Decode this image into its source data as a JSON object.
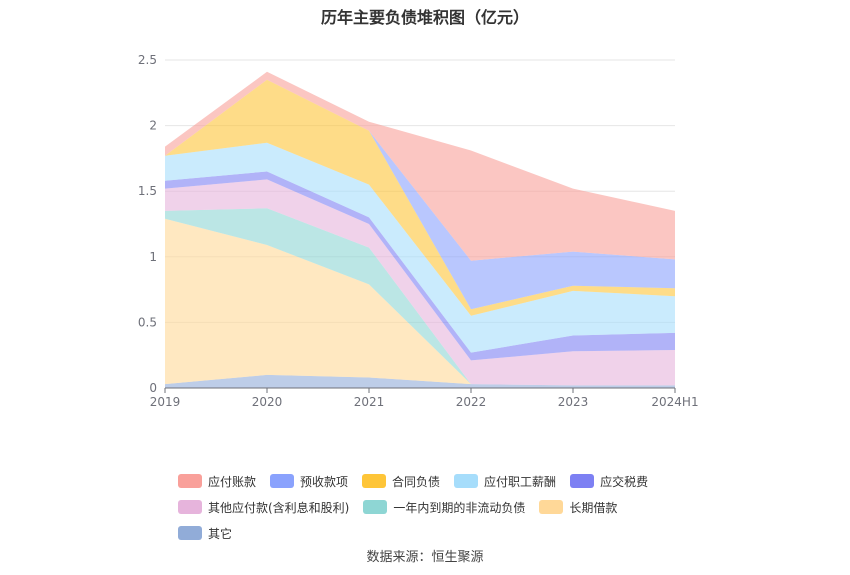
{
  "chart_data": {
    "type": "area",
    "stacked": true,
    "title": "历年主要负债堆积图（亿元）",
    "categories": [
      "2019",
      "2020",
      "2021",
      "2022",
      "2023",
      "2024H1"
    ],
    "y_ticks": [
      "0",
      "0.5",
      "1",
      "1.5",
      "2",
      "2.5"
    ],
    "ylim": [
      0,
      2.5
    ],
    "grid": true,
    "legend_position": "bottom",
    "series": [
      {
        "name": "其它",
        "color": "#91acd8",
        "values": [
          0.03,
          0.1,
          0.08,
          0.03,
          0.02,
          0.02
        ]
      },
      {
        "name": "长期借款",
        "color": "#ffd898",
        "values": [
          1.26,
          0.99,
          0.71,
          0.0,
          0.0,
          0.0
        ]
      },
      {
        "name": "一年内到期的非流动负债",
        "color": "#8ed6d4",
        "values": [
          0.06,
          0.28,
          0.28,
          0.0,
          0.0,
          0.0
        ]
      },
      {
        "name": "其他应付款(含利息和股利)",
        "color": "#e6b4dc",
        "values": [
          0.17,
          0.22,
          0.18,
          0.18,
          0.26,
          0.27
        ]
      },
      {
        "name": "应交税费",
        "color": "#7d80f3",
        "values": [
          0.06,
          0.06,
          0.05,
          0.06,
          0.12,
          0.13
        ]
      },
      {
        "name": "应付职工薪酬",
        "color": "#a6ddfb",
        "values": [
          0.19,
          0.22,
          0.25,
          0.28,
          0.34,
          0.28
        ]
      },
      {
        "name": "合同负债",
        "color": "#fec538",
        "values": [
          0.0,
          0.48,
          0.41,
          0.05,
          0.04,
          0.06
        ]
      },
      {
        "name": "预收款项",
        "color": "#8aa2fd",
        "values": [
          0.0,
          0.0,
          0.0,
          0.37,
          0.26,
          0.22
        ]
      },
      {
        "name": "应付账款",
        "color": "#f9a09a",
        "values": [
          0.07,
          0.06,
          0.07,
          0.84,
          0.48,
          0.37
        ]
      }
    ]
  },
  "legend_order": [
    8,
    7,
    6,
    5,
    4,
    3,
    2,
    1,
    0
  ],
  "source_text": "数据来源：恒生聚源"
}
